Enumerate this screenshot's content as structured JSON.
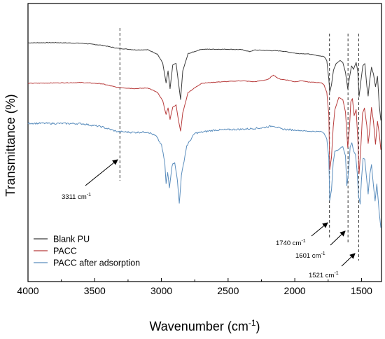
{
  "chart_data": {
    "type": "line",
    "title": "",
    "xlabel": "Wavenumber (cm",
    "xlabel_sup": "-1",
    "xlabel_close": ")",
    "ylabel": "Transmittance (%)",
    "xlim": [
      4000,
      1350
    ],
    "x_reversed": true,
    "ylim": [
      0,
      100
    ],
    "y_ticks_shown": false,
    "grid": false,
    "x_ticks": [
      4000,
      3500,
      3000,
      2500,
      2000,
      1500
    ],
    "x_tick_labels": [
      "4000",
      "3500",
      "3000",
      "2500",
      "2000",
      "1500"
    ],
    "legend_position": "bottom-left",
    "series": [
      {
        "name": "Blank PU",
        "color": "#3c3c3c",
        "points": [
          [
            4000,
            92.4
          ],
          [
            3800,
            92.5
          ],
          [
            3600,
            92.2
          ],
          [
            3450,
            91.2
          ],
          [
            3330,
            89.6
          ],
          [
            3200,
            88.8
          ],
          [
            3100,
            88.8
          ],
          [
            3030,
            86.6
          ],
          [
            2990,
            82.0
          ],
          [
            2965,
            71.8
          ],
          [
            2950,
            77.9
          ],
          [
            2935,
            68.7
          ],
          [
            2915,
            81.0
          ],
          [
            2890,
            81.8
          ],
          [
            2870,
            70.8
          ],
          [
            2856,
            63.4
          ],
          [
            2840,
            77.9
          ],
          [
            2800,
            86.8
          ],
          [
            2700,
            89.1
          ],
          [
            2500,
            89.1
          ],
          [
            2400,
            88.9
          ],
          [
            2340,
            87.9
          ],
          [
            2300,
            88.7
          ],
          [
            2100,
            88.2
          ],
          [
            1980,
            86.9
          ],
          [
            1900,
            86.7
          ],
          [
            1850,
            86.1
          ],
          [
            1780,
            85.3
          ],
          [
            1760,
            83.3
          ],
          [
            1745,
            73.9
          ],
          [
            1738,
            67.2
          ],
          [
            1725,
            70.8
          ],
          [
            1710,
            78.3
          ],
          [
            1690,
            81.8
          ],
          [
            1660,
            83.4
          ],
          [
            1640,
            82.3
          ],
          [
            1620,
            77.2
          ],
          [
            1603,
            68.7
          ],
          [
            1590,
            74.5
          ],
          [
            1575,
            80.6
          ],
          [
            1560,
            78.8
          ],
          [
            1540,
            82.3
          ],
          [
            1528,
            77.8
          ],
          [
            1518,
            64.9
          ],
          [
            1505,
            72.4
          ],
          [
            1490,
            80.6
          ],
          [
            1475,
            81.8
          ],
          [
            1460,
            70.2
          ],
          [
            1450,
            65.1
          ],
          [
            1440,
            72.3
          ],
          [
            1425,
            79.8
          ],
          [
            1410,
            76.4
          ],
          [
            1395,
            69.9
          ],
          [
            1380,
            75.3
          ],
          [
            1367,
            60.4
          ],
          [
            1355,
            52.6
          ]
        ]
      },
      {
        "name": "PACC",
        "color": "#b83c3c",
        "points": [
          [
            4000,
            71.6
          ],
          [
            3800,
            71.8
          ],
          [
            3600,
            72.0
          ],
          [
            3450,
            71.4
          ],
          [
            3330,
            69.5
          ],
          [
            3200,
            68.9
          ],
          [
            3100,
            69.2
          ],
          [
            3030,
            66.9
          ],
          [
            2990,
            62.6
          ],
          [
            2965,
            55.6
          ],
          [
            2950,
            58.8
          ],
          [
            2935,
            53.2
          ],
          [
            2915,
            59.3
          ],
          [
            2890,
            60.5
          ],
          [
            2870,
            51.8
          ],
          [
            2856,
            47.0
          ],
          [
            2840,
            56.4
          ],
          [
            2800,
            66.9
          ],
          [
            2700,
            71.6
          ],
          [
            2600,
            72.2
          ],
          [
            2400,
            72.9
          ],
          [
            2300,
            72.4
          ],
          [
            2200,
            73.6
          ],
          [
            2160,
            75.9
          ],
          [
            2120,
            73.9
          ],
          [
            2050,
            73.2
          ],
          [
            2000,
            72.4
          ],
          [
            1950,
            72.9
          ],
          [
            1900,
            72.3
          ],
          [
            1800,
            71.9
          ],
          [
            1780,
            70.6
          ],
          [
            1760,
            66.9
          ],
          [
            1745,
            55.7
          ],
          [
            1738,
            27.2
          ],
          [
            1725,
            33.6
          ],
          [
            1712,
            49.1
          ],
          [
            1700,
            57.9
          ],
          [
            1670,
            64.4
          ],
          [
            1640,
            63.2
          ],
          [
            1620,
            56.8
          ],
          [
            1603,
            38.6
          ],
          [
            1590,
            48.8
          ],
          [
            1580,
            62.1
          ],
          [
            1568,
            63.8
          ],
          [
            1555,
            55.0
          ],
          [
            1540,
            58.1
          ],
          [
            1528,
            43.5
          ],
          [
            1518,
            25.2
          ],
          [
            1505,
            38.7
          ],
          [
            1492,
            56.2
          ],
          [
            1478,
            58.8
          ],
          [
            1460,
            49.8
          ],
          [
            1450,
            40.8
          ],
          [
            1440,
            46.4
          ],
          [
            1425,
            59.2
          ],
          [
            1410,
            51.8
          ],
          [
            1395,
            40.4
          ],
          [
            1380,
            52.0
          ],
          [
            1367,
            45.8
          ],
          [
            1355,
            37.5
          ]
        ]
      },
      {
        "name": "PACC after adsorption",
        "color": "#5a8dbd",
        "points": [
          [
            4000,
            51.1
          ],
          [
            3800,
            51.0
          ],
          [
            3600,
            50.9
          ],
          [
            3450,
            49.3
          ],
          [
            3330,
            46.8
          ],
          [
            3200,
            46.4
          ],
          [
            3100,
            46.6
          ],
          [
            3040,
            44.5
          ],
          [
            3000,
            40.0
          ],
          [
            2975,
            31.2
          ],
          [
            2965,
            19.9
          ],
          [
            2953,
            25.8
          ],
          [
            2940,
            18.3
          ],
          [
            2920,
            29.5
          ],
          [
            2900,
            31.2
          ],
          [
            2880,
            21.6
          ],
          [
            2866,
            10.0
          ],
          [
            2850,
            24.2
          ],
          [
            2810,
            39.5
          ],
          [
            2750,
            45.9
          ],
          [
            2600,
            47.6
          ],
          [
            2400,
            48.0
          ],
          [
            2250,
            48.7
          ],
          [
            2160,
            49.8
          ],
          [
            2100,
            48.1
          ],
          [
            2000,
            47.6
          ],
          [
            1900,
            47.0
          ],
          [
            1800,
            46.8
          ],
          [
            1780,
            45.9
          ],
          [
            1760,
            43.2
          ],
          [
            1745,
            33.4
          ],
          [
            1738,
            11.3
          ],
          [
            1725,
            17.0
          ],
          [
            1712,
            30.8
          ],
          [
            1700,
            36.6
          ],
          [
            1670,
            37.6
          ],
          [
            1640,
            39.3
          ],
          [
            1620,
            34.3
          ],
          [
            1610,
            19.1
          ],
          [
            1597,
            26.2
          ],
          [
            1585,
            38.9
          ],
          [
            1572,
            41.2
          ],
          [
            1560,
            37.1
          ],
          [
            1545,
            35.1
          ],
          [
            1532,
            25.7
          ],
          [
            1522,
            13.6
          ],
          [
            1510,
            9.8
          ],
          [
            1500,
            22.4
          ],
          [
            1488,
            33.1
          ],
          [
            1476,
            32.4
          ],
          [
            1462,
            23.1
          ],
          [
            1450,
            14.5
          ],
          [
            1438,
            24.8
          ],
          [
            1425,
            29.8
          ],
          [
            1412,
            20.4
          ],
          [
            1398,
            11.1
          ],
          [
            1385,
            19.9
          ],
          [
            1368,
            6.0
          ],
          [
            1355,
            -2.5
          ]
        ]
      }
    ],
    "guide_lines": [
      3311,
      1740,
      1601,
      1521
    ],
    "annotations": [
      {
        "text": "3311 cm",
        "sup": "-1",
        "target_x": 3311
      },
      {
        "text": "1740 cm",
        "sup": "-1",
        "target_x": 1740
      },
      {
        "text": "1601 cm",
        "sup": "-1",
        "target_x": 1601
      },
      {
        "text": "1521 cm",
        "sup": "-1",
        "target_x": 1521
      }
    ]
  }
}
